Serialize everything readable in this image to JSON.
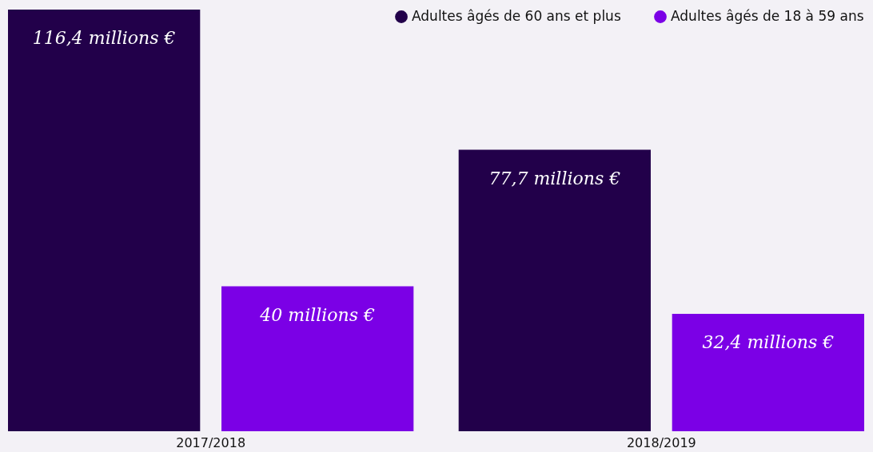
{
  "chart_data": {
    "type": "bar",
    "categories": [
      "2017/2018",
      "2018/2019"
    ],
    "series": [
      {
        "name": "Adultes âgés de 60 ans et plus",
        "color": "#22004a",
        "values": [
          116.4,
          77.7
        ],
        "value_labels": [
          "116,4 millions €",
          "77,7 millions €"
        ]
      },
      {
        "name": "Adultes âgés de 18 à 59 ans",
        "color": "#7b00e6",
        "values": [
          40,
          32.4
        ],
        "value_labels": [
          "40 millions €",
          "32,4 millions €"
        ]
      }
    ],
    "legend": "top right",
    "grid": false
  }
}
